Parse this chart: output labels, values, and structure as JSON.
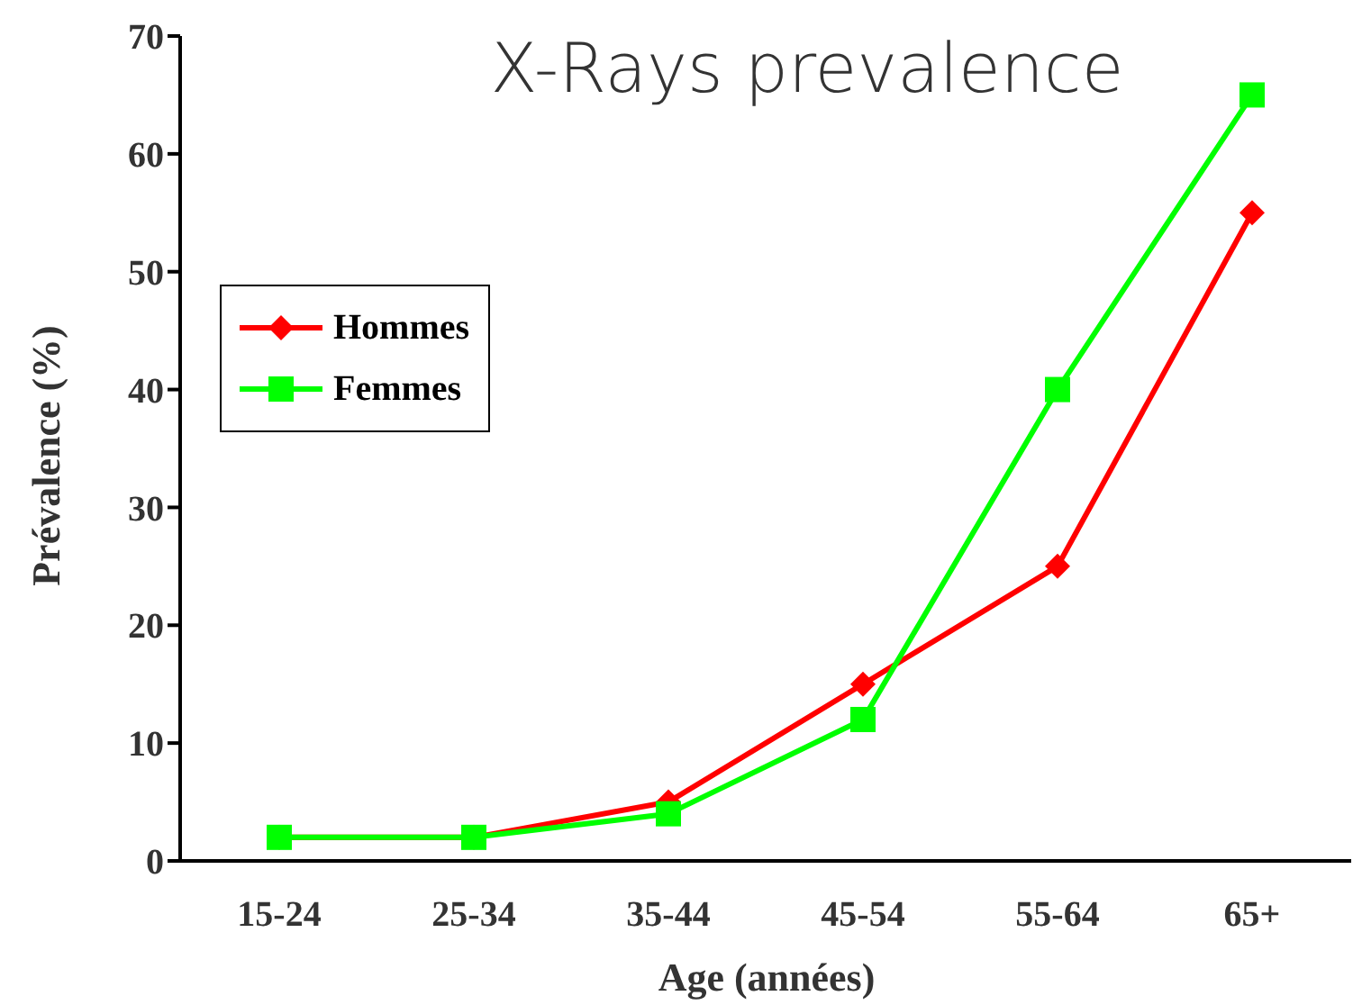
{
  "chart_data": {
    "type": "line",
    "title": "X-Rays prevalence",
    "xlabel": "Age (années)",
    "ylabel": "Prévalence (%)",
    "categories": [
      "15-24",
      "25-34",
      "35-44",
      "45-54",
      "55-64",
      "65+"
    ],
    "series": [
      {
        "name": "Hommes",
        "color": "#ff0000",
        "marker": "diamond",
        "values": [
          2,
          2,
          5,
          15,
          25,
          55
        ]
      },
      {
        "name": "Femmes",
        "color": "#00ff00",
        "marker": "square",
        "values": [
          2,
          2,
          4,
          12,
          40,
          65
        ]
      }
    ],
    "ylim": [
      0,
      70
    ],
    "yticks": [
      0,
      10,
      20,
      30,
      40,
      50,
      60,
      70
    ],
    "grid": false,
    "legend": "left",
    "line_style": "solid"
  }
}
